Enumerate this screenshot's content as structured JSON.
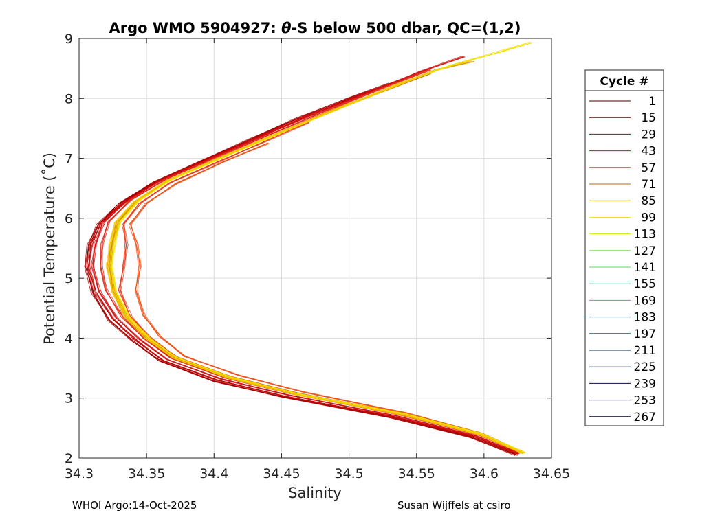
{
  "chart_data": {
    "type": "line",
    "title_main": "Argo WMO 5904927: ",
    "title_theta": "θ",
    "title_rest": "-S below 500 dbar,  QC=(1,2)",
    "xlabel": "Salinity",
    "ylabel": "Potential Temperature (˚C)",
    "xlim": [
      34.3,
      34.65
    ],
    "ylim": [
      2,
      9
    ],
    "xticks": [
      "34.3",
      "34.35",
      "34.4",
      "34.45",
      "34.5",
      "34.55",
      "34.6",
      "34.65"
    ],
    "yticks": [
      "2",
      "3",
      "4",
      "5",
      "6",
      "7",
      "8",
      "9"
    ],
    "grid": true,
    "legend_title": "Cycle #",
    "legend_position": "outside-right",
    "legend_entries": [
      {
        "label": "1",
        "color": "#4a0000"
      },
      {
        "label": "15",
        "color": "#7a0000"
      },
      {
        "label": "29",
        "color": "#b00000"
      },
      {
        "label": "43",
        "color": "#d01010"
      },
      {
        "label": "57",
        "color": "#e83a1a"
      },
      {
        "label": "71",
        "color": "#c86a00"
      },
      {
        "label": "85",
        "color": "#e0a000"
      },
      {
        "label": "99",
        "color": "#f0e000"
      },
      {
        "label": "113",
        "color": "#c8f000"
      },
      {
        "label": "127",
        "color": "#80e040"
      },
      {
        "label": "141",
        "color": "#40e060"
      },
      {
        "label": "155",
        "color": "#20d0a0"
      },
      {
        "label": "169",
        "color": "#10c0c0"
      },
      {
        "label": "183",
        "color": "#109090"
      },
      {
        "label": "197",
        "color": "#106070"
      },
      {
        "label": "211",
        "color": "#103050"
      },
      {
        "label": "225",
        "color": "#102050"
      },
      {
        "label": "239",
        "color": "#0a1040"
      },
      {
        "label": "253",
        "color": "#080830"
      },
      {
        "label": "267",
        "color": "#050530"
      }
    ],
    "series": [
      {
        "color": "#a00000",
        "points": [
          [
            34.624,
            2.05
          ],
          [
            34.59,
            2.35
          ],
          [
            34.53,
            2.68
          ],
          [
            34.45,
            3.02
          ],
          [
            34.4,
            3.28
          ],
          [
            34.36,
            3.62
          ],
          [
            34.34,
            3.95
          ],
          [
            34.322,
            4.3
          ],
          [
            34.31,
            4.75
          ],
          [
            34.305,
            5.2
          ],
          [
            34.307,
            5.55
          ],
          [
            34.314,
            5.9
          ],
          [
            34.33,
            6.25
          ],
          [
            34.355,
            6.6
          ],
          [
            34.39,
            6.95
          ],
          [
            34.425,
            7.3
          ],
          [
            34.46,
            7.65
          ],
          [
            34.5,
            8.0
          ],
          [
            34.53,
            8.25
          ]
        ]
      },
      {
        "color": "#c00000",
        "points": [
          [
            34.625,
            2.07
          ],
          [
            34.592,
            2.36
          ],
          [
            34.532,
            2.69
          ],
          [
            34.452,
            3.03
          ],
          [
            34.402,
            3.3
          ],
          [
            34.362,
            3.63
          ],
          [
            34.342,
            3.97
          ],
          [
            34.325,
            4.32
          ],
          [
            34.312,
            4.77
          ],
          [
            34.307,
            5.2
          ],
          [
            34.309,
            5.56
          ],
          [
            34.316,
            5.92
          ],
          [
            34.333,
            6.27
          ],
          [
            34.358,
            6.62
          ],
          [
            34.393,
            6.97
          ],
          [
            34.43,
            7.33
          ],
          [
            34.466,
            7.68
          ],
          [
            34.505,
            8.03
          ],
          [
            34.537,
            8.3
          ]
        ]
      },
      {
        "color": "#d01010",
        "points": [
          [
            34.626,
            2.08
          ],
          [
            34.594,
            2.37
          ],
          [
            34.535,
            2.7
          ],
          [
            34.455,
            3.05
          ],
          [
            34.405,
            3.32
          ],
          [
            34.365,
            3.65
          ],
          [
            34.345,
            3.98
          ],
          [
            34.328,
            4.33
          ],
          [
            34.315,
            4.78
          ],
          [
            34.31,
            5.2
          ],
          [
            34.312,
            5.57
          ],
          [
            34.318,
            5.93
          ],
          [
            34.335,
            6.28
          ],
          [
            34.36,
            6.63
          ],
          [
            34.396,
            6.98
          ],
          [
            34.434,
            7.35
          ],
          [
            34.472,
            7.72
          ],
          [
            34.515,
            8.1
          ],
          [
            34.553,
            8.45
          ],
          [
            34.585,
            8.7
          ]
        ]
      },
      {
        "color": "#e02818",
        "points": [
          [
            34.627,
            2.09
          ],
          [
            34.596,
            2.39
          ],
          [
            34.538,
            2.72
          ],
          [
            34.458,
            3.07
          ],
          [
            34.408,
            3.34
          ],
          [
            34.368,
            3.67
          ],
          [
            34.348,
            4.0
          ],
          [
            34.332,
            4.35
          ],
          [
            34.32,
            4.8
          ],
          [
            34.316,
            5.2
          ],
          [
            34.317,
            5.58
          ],
          [
            34.322,
            5.94
          ],
          [
            34.338,
            6.3
          ],
          [
            34.364,
            6.65
          ],
          [
            34.4,
            7.0
          ],
          [
            34.44,
            7.38
          ],
          [
            34.48,
            7.76
          ],
          [
            34.522,
            8.15
          ],
          [
            34.56,
            8.48
          ]
        ]
      },
      {
        "color": "#e83a1a",
        "points": [
          [
            34.627,
            2.1
          ],
          [
            34.597,
            2.4
          ],
          [
            34.54,
            2.73
          ],
          [
            34.462,
            3.08
          ],
          [
            34.412,
            3.36
          ],
          [
            34.372,
            3.69
          ],
          [
            34.352,
            4.02
          ],
          [
            34.338,
            4.37
          ],
          [
            34.33,
            4.8
          ],
          [
            34.333,
            5.2
          ],
          [
            34.335,
            5.55
          ],
          [
            34.333,
            5.9
          ],
          [
            34.345,
            6.25
          ],
          [
            34.368,
            6.6
          ],
          [
            34.404,
            6.95
          ],
          [
            34.44,
            7.3
          ],
          [
            34.47,
            7.6
          ]
        ]
      },
      {
        "color": "#f05018",
        "points": [
          [
            34.628,
            2.1
          ],
          [
            34.598,
            2.41
          ],
          [
            34.542,
            2.75
          ],
          [
            34.466,
            3.1
          ],
          [
            34.418,
            3.38
          ],
          [
            34.378,
            3.7
          ],
          [
            34.36,
            4.03
          ],
          [
            34.348,
            4.38
          ],
          [
            34.342,
            4.8
          ],
          [
            34.345,
            5.2
          ],
          [
            34.343,
            5.55
          ],
          [
            34.338,
            5.9
          ],
          [
            34.35,
            6.25
          ],
          [
            34.372,
            6.58
          ],
          [
            34.406,
            6.93
          ],
          [
            34.44,
            7.25
          ]
        ]
      },
      {
        "color": "#c86a00",
        "points": [
          [
            34.628,
            2.09
          ],
          [
            34.597,
            2.4
          ],
          [
            34.54,
            2.73
          ],
          [
            34.46,
            3.07
          ],
          [
            34.41,
            3.35
          ],
          [
            34.37,
            3.68
          ],
          [
            34.35,
            4.0
          ],
          [
            34.334,
            4.35
          ],
          [
            34.325,
            4.78
          ],
          [
            34.322,
            5.2
          ],
          [
            34.324,
            5.57
          ],
          [
            34.328,
            5.93
          ],
          [
            34.342,
            6.28
          ],
          [
            34.366,
            6.63
          ],
          [
            34.402,
            6.98
          ],
          [
            34.442,
            7.36
          ],
          [
            34.482,
            7.74
          ],
          [
            34.525,
            8.12
          ],
          [
            34.56,
            8.42
          ]
        ]
      },
      {
        "color": "#e0a000",
        "points": [
          [
            34.629,
            2.1
          ],
          [
            34.598,
            2.41
          ],
          [
            34.541,
            2.74
          ],
          [
            34.461,
            3.08
          ],
          [
            34.411,
            3.36
          ],
          [
            34.371,
            3.69
          ],
          [
            34.351,
            4.01
          ],
          [
            34.336,
            4.36
          ],
          [
            34.326,
            4.78
          ],
          [
            34.323,
            5.2
          ],
          [
            34.325,
            5.57
          ],
          [
            34.329,
            5.93
          ],
          [
            34.343,
            6.29
          ],
          [
            34.367,
            6.64
          ],
          [
            34.403,
            6.99
          ],
          [
            34.444,
            7.38
          ],
          [
            34.486,
            7.78
          ],
          [
            34.53,
            8.17
          ],
          [
            34.565,
            8.48
          ],
          [
            34.592,
            8.62
          ]
        ]
      },
      {
        "color": "#f0e000",
        "points": [
          [
            34.63,
            2.09
          ],
          [
            34.599,
            2.4
          ],
          [
            34.542,
            2.73
          ],
          [
            34.462,
            3.07
          ],
          [
            34.412,
            3.35
          ],
          [
            34.372,
            3.68
          ],
          [
            34.352,
            4.0
          ],
          [
            34.337,
            4.35
          ],
          [
            34.327,
            4.78
          ],
          [
            34.324,
            5.2
          ],
          [
            34.326,
            5.57
          ],
          [
            34.33,
            5.93
          ],
          [
            34.344,
            6.29
          ],
          [
            34.368,
            6.64
          ],
          [
            34.404,
            6.99
          ],
          [
            34.446,
            7.39
          ],
          [
            34.49,
            7.8
          ],
          [
            34.535,
            8.22
          ],
          [
            34.575,
            8.55
          ],
          [
            34.612,
            8.78
          ],
          [
            34.635,
            8.93
          ]
        ]
      },
      {
        "color": "#f5c800",
        "points": [
          [
            34.629,
            2.08
          ],
          [
            34.597,
            2.39
          ],
          [
            34.54,
            2.72
          ],
          [
            34.46,
            3.06
          ],
          [
            34.41,
            3.34
          ],
          [
            34.37,
            3.67
          ],
          [
            34.35,
            3.99
          ],
          [
            34.335,
            4.34
          ],
          [
            34.325,
            4.77
          ],
          [
            34.321,
            5.2
          ],
          [
            34.323,
            5.57
          ],
          [
            34.327,
            5.93
          ],
          [
            34.341,
            6.28
          ],
          [
            34.365,
            6.63
          ],
          [
            34.401,
            6.98
          ],
          [
            34.44,
            7.35
          ],
          [
            34.48,
            7.72
          ],
          [
            34.52,
            8.08
          ],
          [
            34.55,
            8.35
          ]
        ]
      }
    ]
  },
  "footer": {
    "left": "WHOI Argo:14-Oct-2025",
    "right": "Susan Wijffels at csiro"
  }
}
